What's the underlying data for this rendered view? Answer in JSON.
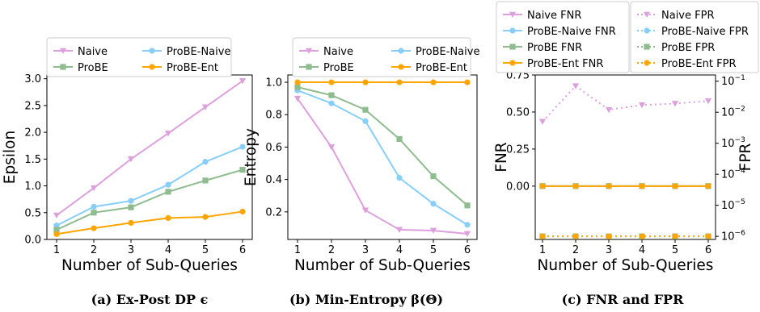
{
  "chart_data": [
    {
      "type": "line",
      "caption": "(a) Ex-Post DP ϵ",
      "xlabel": "Number of Sub-Queries",
      "ylabel": "Epsilon",
      "x": [
        1,
        2,
        3,
        4,
        5,
        6
      ],
      "xlim": [
        0.8,
        6.2
      ],
      "ylim": [
        0,
        3.07
      ],
      "yticks": [
        0.0,
        0.5,
        1.0,
        1.5,
        2.0,
        2.5,
        3.0
      ],
      "ytick_labels": [
        "0.0",
        "0.5",
        "1.0",
        "1.5",
        "2.0",
        "2.5",
        "3.0"
      ],
      "legend_placement": "top",
      "series": [
        {
          "name": "Naive",
          "color": "#dda0dd",
          "marker": "triangle-down",
          "dash": "solid",
          "values": [
            0.45,
            0.96,
            1.5,
            1.98,
            2.47,
            2.96
          ]
        },
        {
          "name": "ProBE-Naive",
          "color": "#87cefa",
          "marker": "circle",
          "dash": "solid",
          "values": [
            0.26,
            0.61,
            0.72,
            1.02,
            1.45,
            1.73
          ]
        },
        {
          "name": "ProBE",
          "color": "#8fbc8f",
          "marker": "square",
          "dash": "solid",
          "values": [
            0.18,
            0.5,
            0.6,
            0.89,
            1.1,
            1.3
          ]
        },
        {
          "name": "ProBE-Ent",
          "color": "#ffa500",
          "marker": "circle",
          "dash": "solid",
          "values": [
            0.1,
            0.21,
            0.31,
            0.4,
            0.42,
            0.52
          ]
        }
      ]
    },
    {
      "type": "line",
      "caption": "(b) Min-Entropy β(Θ)",
      "xlabel": "Number of Sub-Queries",
      "ylabel": "Entropy",
      "x": [
        1,
        2,
        3,
        4,
        5,
        6
      ],
      "xlim": [
        0.8,
        6.2
      ],
      "ylim": [
        0.03,
        1.045
      ],
      "yticks": [
        0.2,
        0.4,
        0.6,
        0.8,
        1.0
      ],
      "ytick_labels": [
        "0.2",
        "0.4",
        "0.6",
        "0.8",
        "1.0"
      ],
      "legend_placement": "top",
      "series": [
        {
          "name": "Naive",
          "color": "#dda0dd",
          "marker": "triangle-down",
          "dash": "solid",
          "values": [
            0.9,
            0.6,
            0.21,
            0.09,
            0.085,
            0.065
          ]
        },
        {
          "name": "ProBE-Naive",
          "color": "#87cefa",
          "marker": "circle",
          "dash": "solid",
          "values": [
            0.95,
            0.87,
            0.76,
            0.41,
            0.25,
            0.12
          ]
        },
        {
          "name": "ProBE",
          "color": "#8fbc8f",
          "marker": "square",
          "dash": "solid",
          "values": [
            0.97,
            0.92,
            0.83,
            0.65,
            0.42,
            0.24
          ]
        },
        {
          "name": "ProBE-Ent",
          "color": "#ffa500",
          "marker": "circle",
          "dash": "solid",
          "values": [
            1.0,
            1.0,
            1.0,
            1.0,
            1.0,
            1.0
          ]
        }
      ]
    },
    {
      "type": "line",
      "caption": "(c) FNR and FPR",
      "xlabel": "Number of Sub-Queries",
      "ylabel": "FNR",
      "ylabel_right": "FPR",
      "x": [
        1,
        2,
        3,
        4,
        5,
        6
      ],
      "xlim": [
        0.8,
        6.2
      ],
      "ylim": [
        -0.36,
        0.75
      ],
      "yticks": [
        0.0,
        0.25,
        0.5,
        0.75
      ],
      "ytick_labels": [
        "0.00",
        "0.25",
        "0.50",
        "0.75"
      ],
      "y2_scale": "log",
      "y2_exponent_range": [
        -6.1,
        -0.8
      ],
      "y2ticks": [
        -6,
        -5,
        -4,
        -3,
        -2,
        -1
      ],
      "y2tick_labels": [
        "10",
        "10",
        "10",
        "10",
        "10",
        "10"
      ],
      "y2tick_exponents": [
        "−6",
        "−5",
        "−4",
        "−3",
        "−2",
        "−1"
      ],
      "legend_placement": "top",
      "series": [
        {
          "name": "Naive FNR",
          "color": "#dda0dd",
          "marker": "triangle-down",
          "dash": "solid",
          "axis": "left",
          "values": [
            0,
            0,
            0,
            0,
            0,
            0
          ]
        },
        {
          "name": "ProBE-Naive FNR",
          "color": "#87cefa",
          "marker": "circle",
          "dash": "solid",
          "axis": "left",
          "values": [
            0,
            0,
            0,
            0,
            0,
            0
          ]
        },
        {
          "name": "ProBE FNR",
          "color": "#8fbc8f",
          "marker": "square",
          "dash": "solid",
          "axis": "left",
          "values": [
            0,
            0,
            0,
            0,
            0,
            0
          ]
        },
        {
          "name": "ProBE-Ent FNR",
          "color": "#ffa500",
          "marker": "circle",
          "dash": "solid",
          "axis": "left",
          "values": [
            0,
            0,
            0,
            0,
            0,
            0
          ]
        },
        {
          "name": "Naive FPR",
          "color": "#dda0dd",
          "marker": "triangle-down",
          "dash": "dotted",
          "axis": "right",
          "values": [
            0.005,
            0.07,
            0.012,
            0.017,
            0.019,
            0.023
          ]
        },
        {
          "name": "ProBE-Naive FPR",
          "color": "#87cefa",
          "marker": "circle",
          "dash": "dotted",
          "axis": "right",
          "values": [
            1e-06,
            1e-06,
            1e-06,
            1e-06,
            1e-06,
            1e-06
          ]
        },
        {
          "name": "ProBE FPR",
          "color": "#8fbc8f",
          "marker": "square",
          "dash": "dotted",
          "axis": "right",
          "values": [
            1e-06,
            1e-06,
            1e-06,
            1e-06,
            1e-06,
            1e-06
          ]
        },
        {
          "name": "ProBE-Ent FPR",
          "color": "#ffa500",
          "marker": "circle",
          "dash": "dotted",
          "axis": "right",
          "values": [
            1e-06,
            1e-06,
            1e-06,
            1e-06,
            1e-06,
            1e-06
          ]
        }
      ]
    }
  ]
}
